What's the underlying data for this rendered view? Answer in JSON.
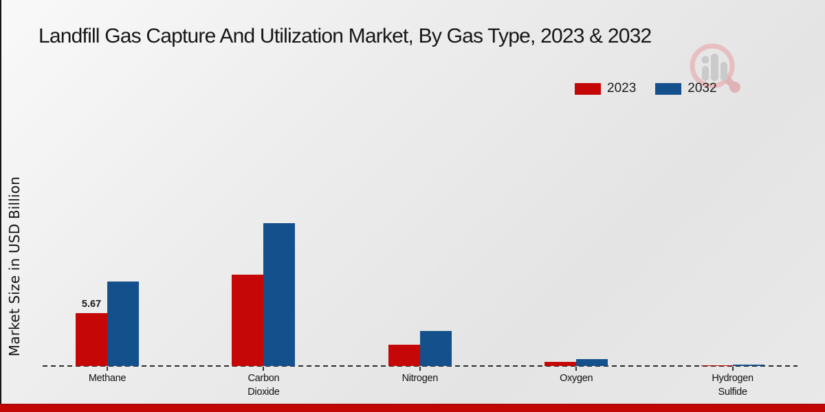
{
  "page": {
    "footer_color": "#c20505",
    "background_top_left": "#f9f9f9",
    "background_bottom_right": "#e6e6e6"
  },
  "chart_data": {
    "type": "bar",
    "title": "Landfill Gas Capture And Utilization Market, By Gas Type, 2023 & 2032",
    "xlabel": "",
    "ylabel": "Market Size in USD Billion",
    "categories": [
      "Methane",
      "Carbon Dioxide",
      "Nitrogen",
      "Oxygen",
      "Hydrogen Sulfide"
    ],
    "series": [
      {
        "name": "2023",
        "color": "#c50707",
        "values": [
          5.67,
          9.79,
          2.28,
          0.45,
          0.07
        ]
      },
      {
        "name": "2032",
        "color": "#14508c",
        "values": [
          9.05,
          15.31,
          3.76,
          0.7,
          0.15
        ]
      }
    ],
    "data_labels": [
      {
        "series": "2023",
        "category": "Methane",
        "text": "5.67"
      }
    ],
    "ylim": [
      0,
      16
    ],
    "grid": "off",
    "baseline_style": "dashed",
    "legend_position": "top-right",
    "legend_entries": [
      "2023",
      "2032"
    ]
  },
  "watermark": {
    "name": "market-research-logo",
    "ring_color": "#e8babd",
    "bar_color": "#c7c7c9"
  }
}
